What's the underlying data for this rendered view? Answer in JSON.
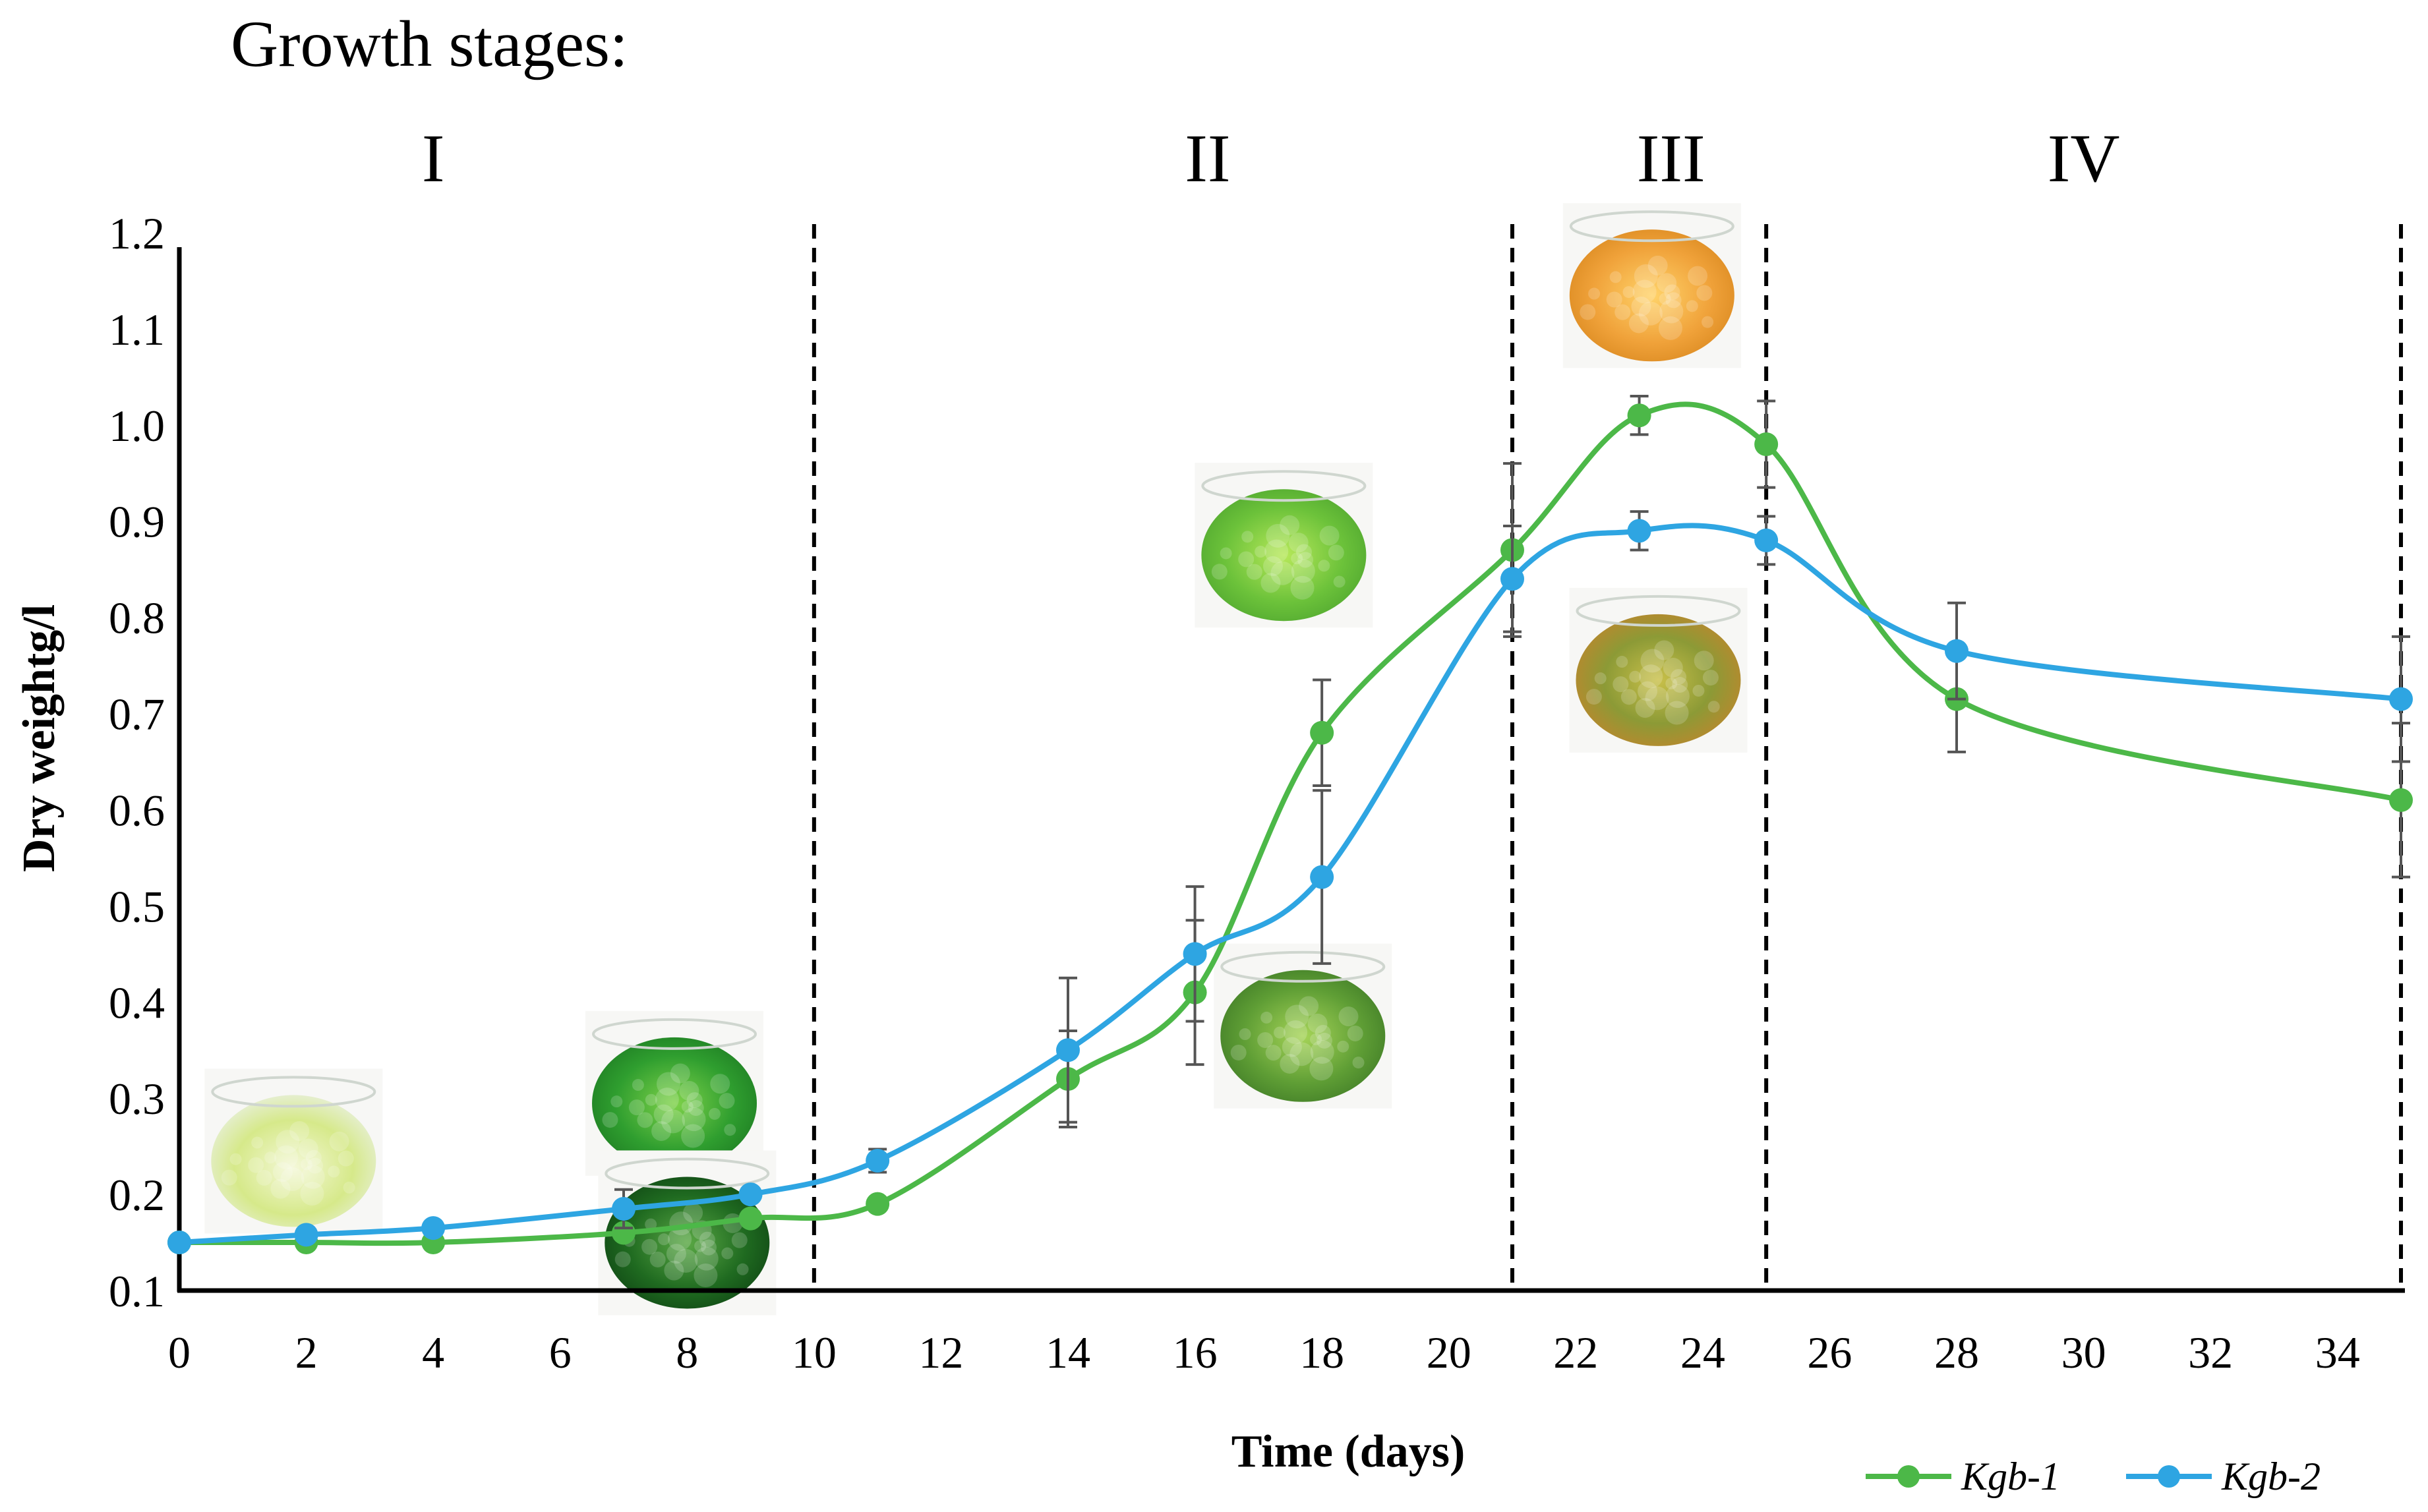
{
  "header": {
    "title": "Growth stages:",
    "stages": [
      "I",
      "II",
      "III",
      "IV"
    ]
  },
  "colors": {
    "kgb1": "#4cb848",
    "kgb2": "#2ea5e2",
    "error_bar": "#555555",
    "axis": "#000000"
  },
  "chart_data": {
    "type": "line",
    "title": "Growth stages:",
    "xlabel": "Time (days)",
    "ylabel": "Dry weightg/l",
    "xlim": [
      0,
      35
    ],
    "ylim": [
      0.1,
      1.2
    ],
    "x_ticks": [
      0,
      2,
      4,
      6,
      8,
      10,
      12,
      14,
      16,
      18,
      20,
      22,
      24,
      26,
      28,
      30,
      32,
      34
    ],
    "y_ticks": [
      "0.1",
      "0.2",
      "0.3",
      "0.4",
      "0.5",
      "0.6",
      "0.7",
      "0.8",
      "0.9",
      "1.0",
      "1.1",
      "1.2"
    ],
    "stage_boundaries": [
      10,
      21,
      25,
      35
    ],
    "stage_labels": [
      {
        "label": "I",
        "x": 4
      },
      {
        "label": "II",
        "x": 16.2
      },
      {
        "label": "III",
        "x": 23.5
      },
      {
        "label": "IV",
        "x": 30
      }
    ],
    "series": [
      {
        "name": "Kgb-1",
        "color": "#4cb848",
        "x": [
          0,
          2,
          4,
          7,
          9,
          11,
          14,
          16,
          18,
          21,
          23,
          25,
          28,
          35
        ],
        "y": [
          0.15,
          0.15,
          0.15,
          0.16,
          0.175,
          0.19,
          0.32,
          0.41,
          0.68,
          0.87,
          1.01,
          0.98,
          0.715,
          0.61
        ],
        "err": [
          0,
          0,
          0,
          0,
          0,
          0,
          0.05,
          0.075,
          0.055,
          0.09,
          0.02,
          0.045,
          0.055,
          0.08
        ]
      },
      {
        "name": "Kgb-2",
        "color": "#2ea5e2",
        "x": [
          0,
          2,
          4,
          7,
          9,
          11,
          14,
          16,
          18,
          21,
          23,
          25,
          28,
          35
        ],
        "y": [
          0.15,
          0.158,
          0.165,
          0.185,
          0.2,
          0.235,
          0.35,
          0.45,
          0.53,
          0.84,
          0.89,
          0.88,
          0.765,
          0.715
        ],
        "err": [
          0,
          0,
          0,
          0.02,
          0,
          0.012,
          0.075,
          0.07,
          0.09,
          0.055,
          0.02,
          0.025,
          0.05,
          0.065
        ]
      }
    ],
    "photos": [
      {
        "name": "culture-photo-day1",
        "x": 1.8,
        "y": 0.245,
        "tone": "pale"
      },
      {
        "name": "culture-photo-day8a",
        "x": 7.8,
        "y": 0.305,
        "tone": "green"
      },
      {
        "name": "culture-photo-day8b",
        "x": 8,
        "y": 0.16,
        "tone": "dark"
      },
      {
        "name": "culture-photo-day18a",
        "x": 17.4,
        "y": 0.875,
        "tone": "lime"
      },
      {
        "name": "culture-photo-day18b",
        "x": 17.7,
        "y": 0.375,
        "tone": "moss"
      },
      {
        "name": "culture-photo-day23a",
        "x": 23.2,
        "y": 1.145,
        "tone": "orange"
      },
      {
        "name": "culture-photo-day23b",
        "x": 23.3,
        "y": 0.745,
        "tone": "mixed"
      }
    ],
    "legend_position": "bottom-right"
  }
}
